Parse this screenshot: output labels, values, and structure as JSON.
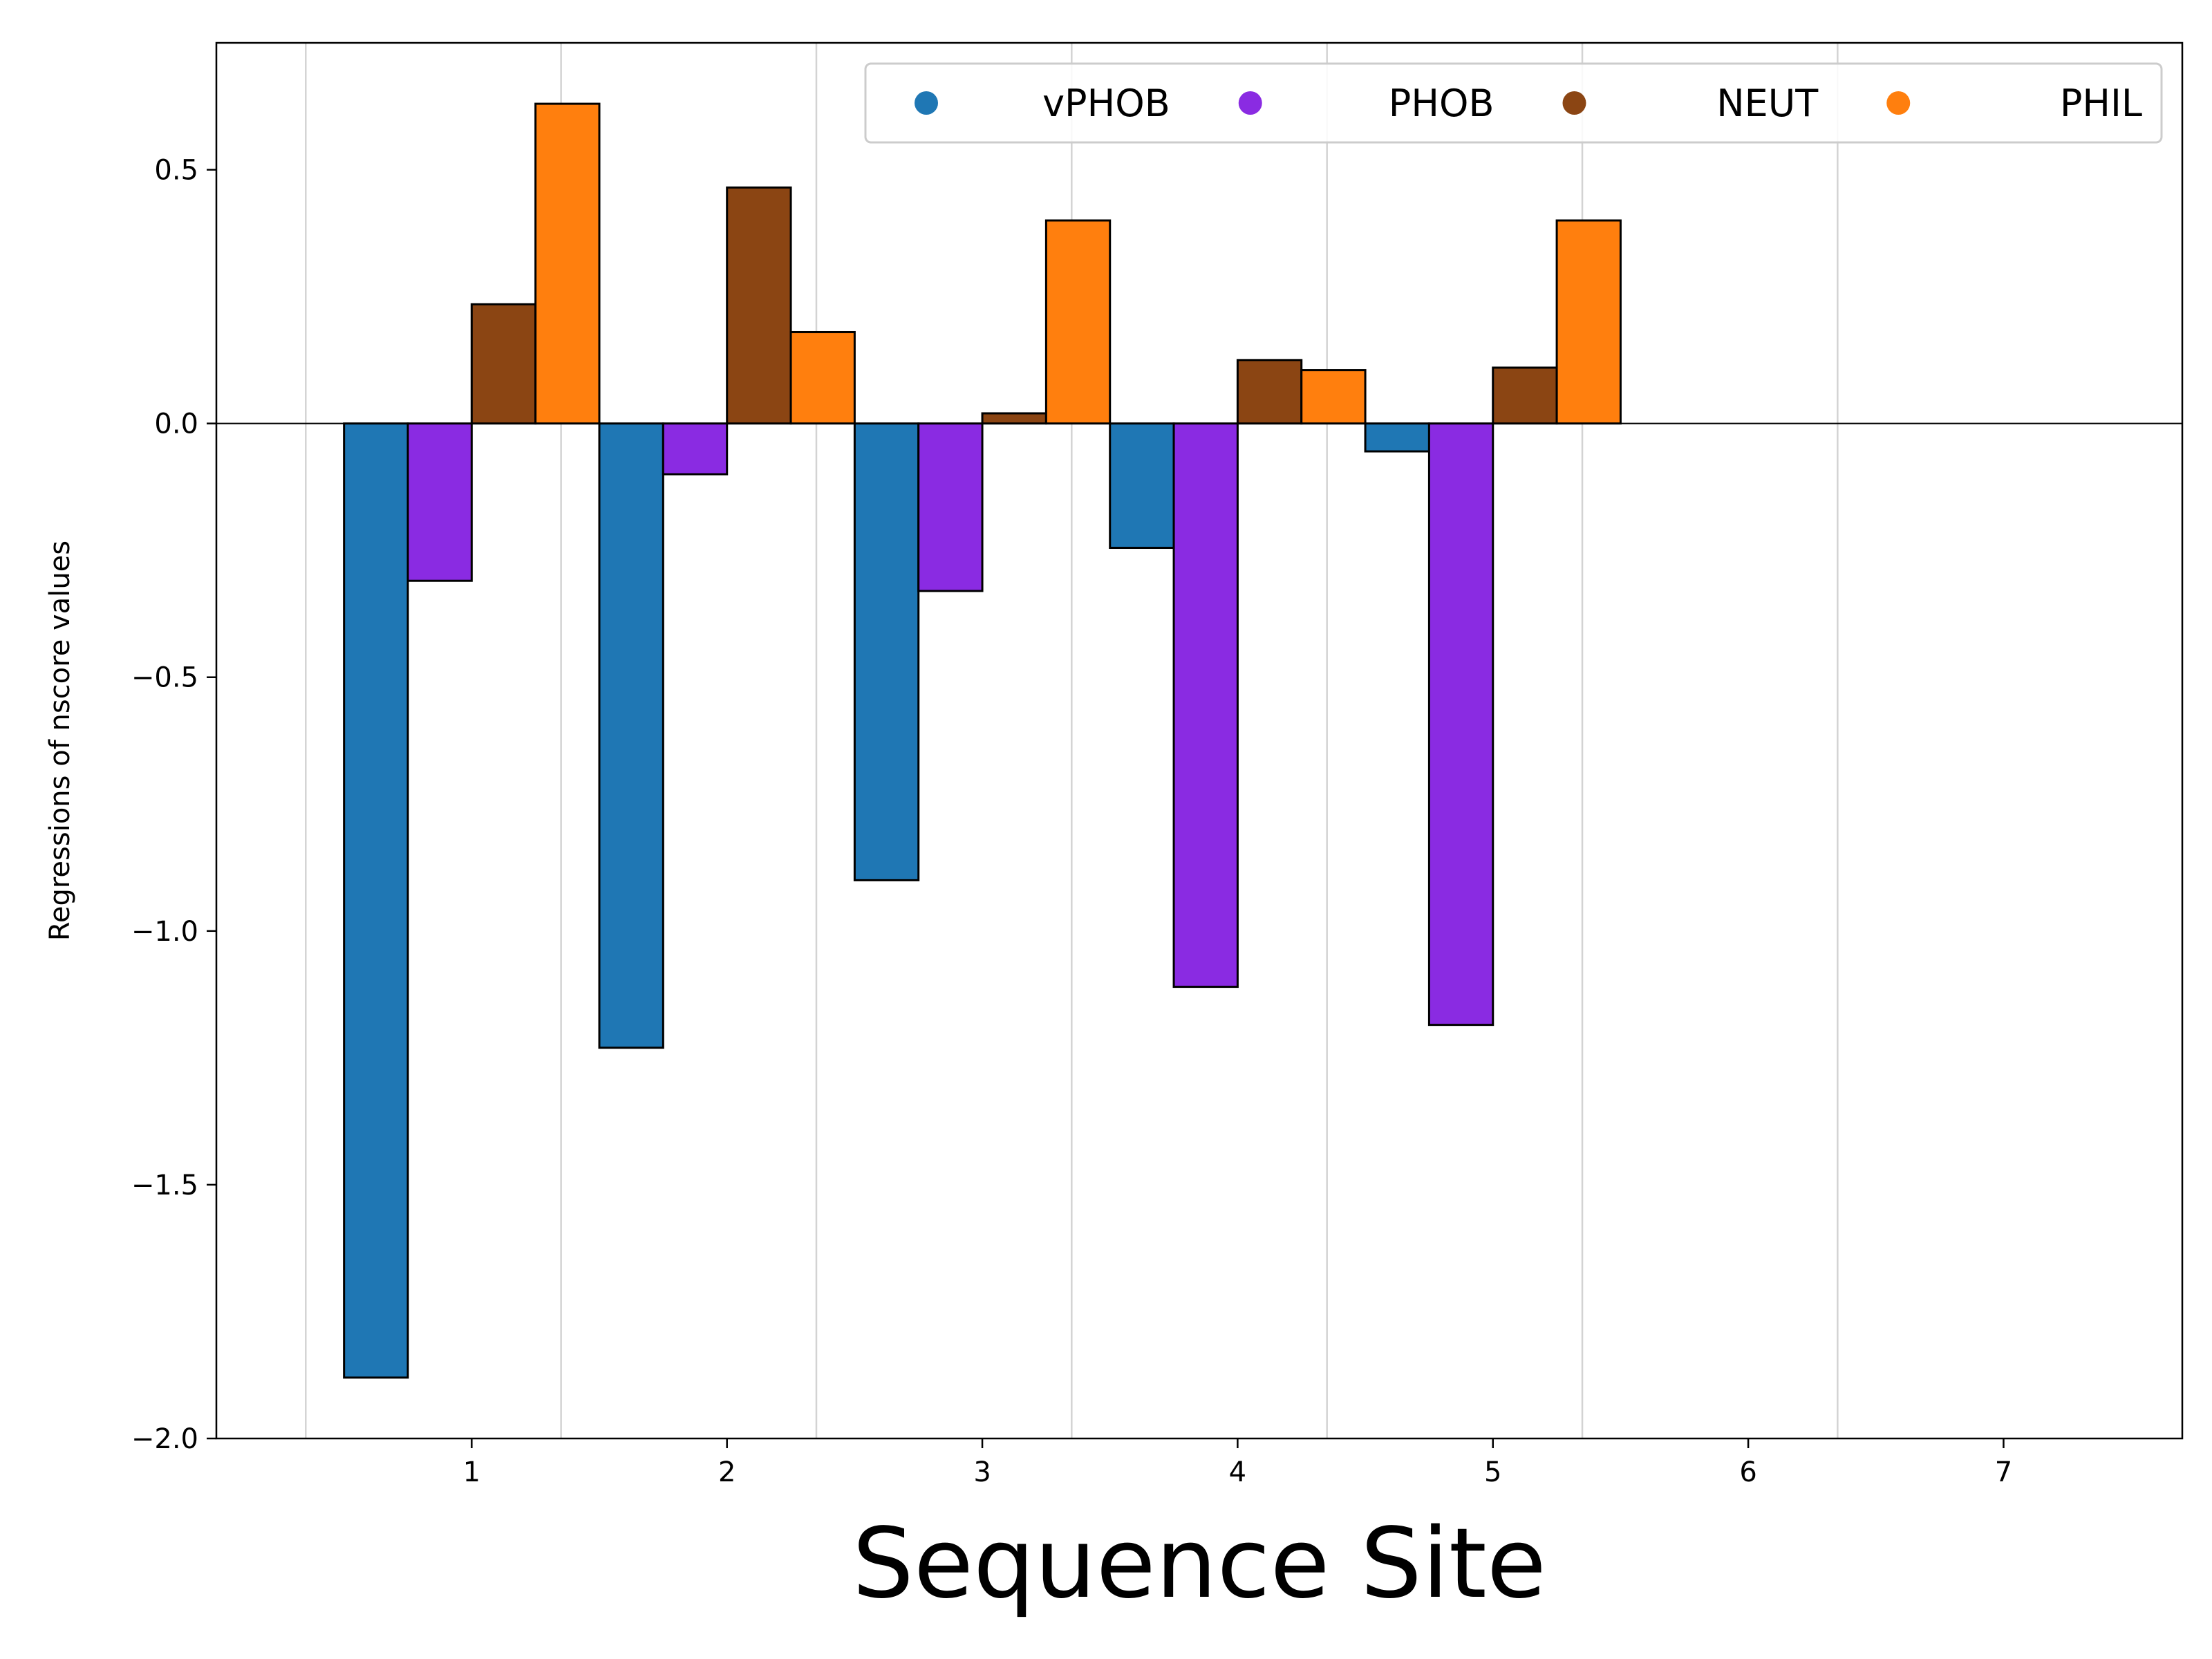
{
  "chart_data": {
    "type": "bar",
    "categories": [
      "1",
      "2",
      "3",
      "4",
      "5",
      "6",
      "7"
    ],
    "x_ticks": [
      "1",
      "2",
      "3",
      "4",
      "5",
      "6",
      "7"
    ],
    "y_ticks": [
      "0.5",
      "0.0",
      "−0.5",
      "−1.0",
      "−1.5",
      "−2.0"
    ],
    "y_tick_values": [
      0.5,
      0.0,
      -0.5,
      -1.0,
      -1.5,
      -2.0
    ],
    "xlabel": "Sequence Site",
    "ylabel": "Regressions of nscore values",
    "ylim": [
      -2.0,
      0.75
    ],
    "xlim": [
      0.0,
      7.7
    ],
    "grid": "vertical",
    "legend_position": "top-right",
    "series": [
      {
        "name": "vPHOB",
        "color": "#1f77b4",
        "values": [
          -1.88,
          -1.23,
          -0.9,
          -0.245,
          -0.055,
          null,
          null
        ]
      },
      {
        "name": "PHOB",
        "color": "#8a2be2",
        "values": [
          -0.31,
          -0.1,
          -0.33,
          -1.11,
          -1.185,
          null,
          null
        ]
      },
      {
        "name": "NEUT",
        "color": "#8b4513",
        "values": [
          0.235,
          0.465,
          0.02,
          0.125,
          0.11,
          null,
          null
        ]
      },
      {
        "name": "PHIL",
        "color": "#ff7f0e",
        "values": [
          0.63,
          0.18,
          0.4,
          0.105,
          0.4,
          null,
          null
        ]
      }
    ]
  }
}
